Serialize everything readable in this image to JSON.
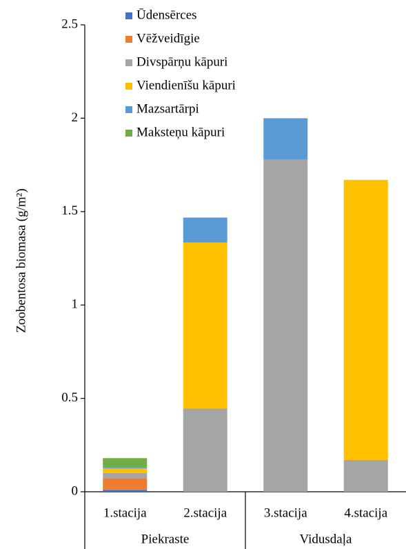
{
  "chart_data": {
    "type": "stacked-bar",
    "y_label": "Zoobentosa biomasa (g/m²)",
    "categories": [
      "1.stacija",
      "2.stacija",
      "3.stacija",
      "4.stacija"
    ],
    "groups": [
      "Piekraste",
      "Vidusdaļa"
    ],
    "series": [
      {
        "name": "Ūdensērces",
        "color": "#4472c4",
        "values": [
          0.01,
          0,
          0,
          0
        ]
      },
      {
        "name": "Vēžveidīgie",
        "color": "#ed7d31",
        "values": [
          0.06,
          0,
          0,
          0
        ]
      },
      {
        "name": "Divspārņu kāpuri",
        "color": "#a5a5a5",
        "values": [
          0.03,
          0.445,
          1.78,
          0.17
        ]
      },
      {
        "name": "Viendienīšu kāpuri",
        "color": "#ffc000",
        "values": [
          0.025,
          0.89,
          0,
          1.5
        ]
      },
      {
        "name": "Mazsartārpi",
        "color": "#5b9bd5",
        "values": [
          0.005,
          0.133,
          0.22,
          0
        ]
      },
      {
        "name": "Maksteņu kāpuri",
        "color": "#70ad47",
        "values": [
          0.05,
          0,
          0,
          0
        ]
      }
    ],
    "ylim": [
      0,
      2.5
    ],
    "yticks": [
      0,
      0.5,
      1,
      1.5,
      2,
      2.5
    ],
    "grid": false,
    "legend": "top-left"
  }
}
